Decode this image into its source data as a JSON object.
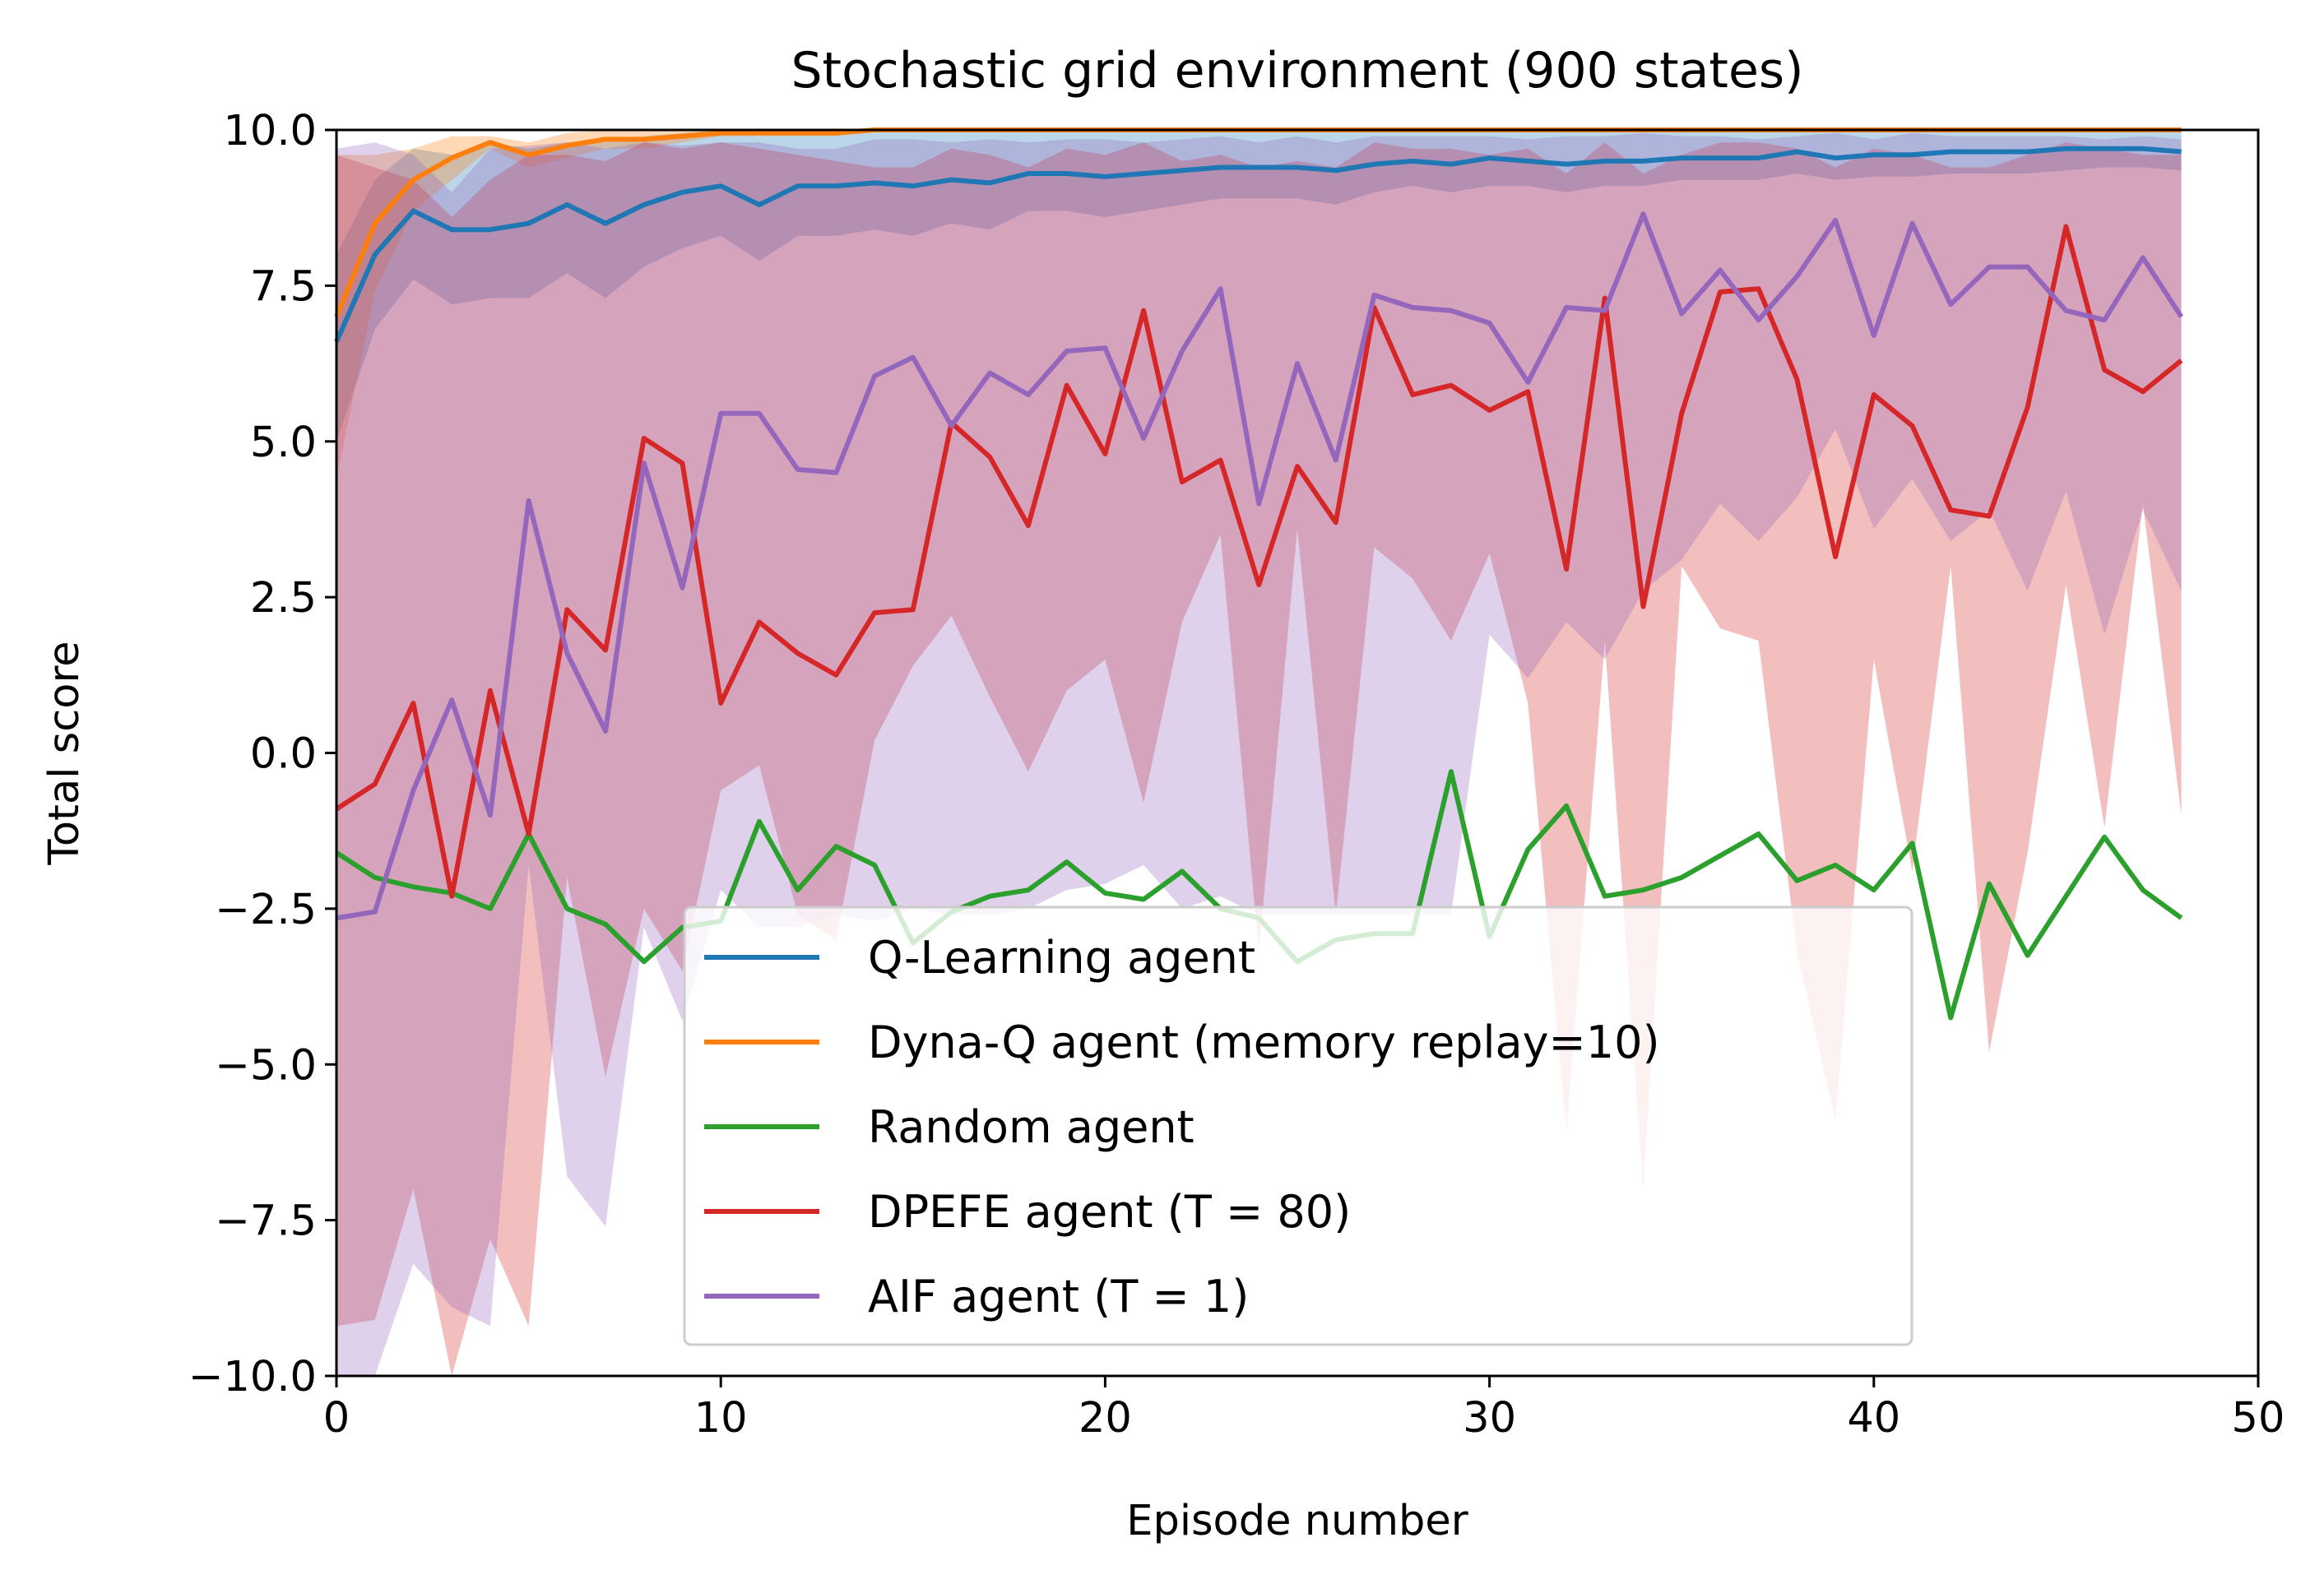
{
  "chart_data": {
    "type": "line",
    "title": "Stochastic grid environment (900 states)",
    "xlabel": "Episode number",
    "ylabel": "Total score",
    "xlim": [
      0,
      50
    ],
    "ylim": [
      -10,
      10
    ],
    "xticks": [
      0,
      10,
      20,
      30,
      40,
      50
    ],
    "xtick_labels": [
      "0",
      "10",
      "20",
      "30",
      "40",
      "50"
    ],
    "yticks": [
      -10,
      -7.5,
      -5,
      -2.5,
      0,
      2.5,
      5,
      7.5,
      10
    ],
    "ytick_labels": [
      "−10.0",
      "−7.5",
      "−5.0",
      "−2.5",
      "0.0",
      "2.5",
      "5.0",
      "7.5",
      "10.0"
    ],
    "grid": false,
    "legend_position": "lower-center",
    "x": [
      0,
      1,
      2,
      3,
      4,
      5,
      6,
      7,
      8,
      9,
      10,
      11,
      12,
      13,
      14,
      15,
      16,
      17,
      18,
      19,
      20,
      21,
      22,
      23,
      24,
      25,
      26,
      27,
      28,
      29,
      30,
      31,
      32,
      33,
      34,
      35,
      36,
      37,
      38,
      39,
      40,
      41,
      42,
      43,
      44,
      45,
      46,
      47,
      48
    ],
    "series": [
      {
        "name": "Q-Learning agent",
        "color": "#1f77b4",
        "band_alpha": 0.3,
        "values": [
          6.6,
          8.0,
          8.7,
          8.4,
          8.4,
          8.5,
          8.8,
          8.5,
          8.8,
          9.0,
          9.1,
          8.8,
          9.1,
          9.1,
          9.15,
          9.1,
          9.2,
          9.15,
          9.3,
          9.3,
          9.25,
          9.3,
          9.35,
          9.4,
          9.4,
          9.4,
          9.35,
          9.45,
          9.5,
          9.45,
          9.55,
          9.5,
          9.45,
          9.5,
          9.5,
          9.55,
          9.55,
          9.55,
          9.65,
          9.55,
          9.6,
          9.6,
          9.65,
          9.65,
          9.65,
          9.7,
          9.7,
          9.7,
          9.65
        ],
        "upper": [
          8.0,
          9.2,
          9.7,
          9.6,
          9.8,
          9.7,
          9.8,
          9.8,
          9.9,
          9.95,
          10.0,
          9.9,
          10,
          10,
          10,
          10,
          10,
          10,
          10,
          10,
          10,
          10,
          10,
          10,
          10,
          10,
          10,
          10,
          10,
          10,
          10,
          10,
          10,
          10,
          10,
          10,
          10,
          10,
          10,
          10,
          10,
          10,
          10,
          10,
          10,
          10,
          10,
          10,
          10
        ],
        "lower": [
          5.0,
          6.8,
          7.6,
          7.2,
          7.3,
          7.3,
          7.7,
          7.3,
          7.8,
          8.1,
          8.3,
          7.9,
          8.3,
          8.3,
          8.4,
          8.3,
          8.5,
          8.4,
          8.7,
          8.7,
          8.6,
          8.7,
          8.8,
          8.9,
          8.9,
          8.9,
          8.8,
          9.0,
          9.1,
          9.0,
          9.1,
          9.1,
          9.0,
          9.1,
          9.1,
          9.2,
          9.2,
          9.2,
          9.3,
          9.2,
          9.25,
          9.25,
          9.3,
          9.3,
          9.3,
          9.35,
          9.4,
          9.4,
          9.35
        ]
      },
      {
        "name": "Dyna-Q agent (memory replay=10)",
        "color": "#ff7f0e",
        "band_alpha": 0.3,
        "values": [
          7.0,
          8.5,
          9.2,
          9.55,
          9.8,
          9.6,
          9.75,
          9.85,
          9.85,
          9.9,
          9.95,
          9.95,
          9.95,
          9.95,
          10,
          10,
          10,
          10,
          10,
          10,
          10,
          10,
          10,
          10,
          10,
          10,
          10,
          10,
          10,
          10,
          10,
          10,
          10,
          10,
          10,
          10,
          10,
          10,
          10,
          10,
          10,
          10,
          10,
          10,
          10,
          10,
          10,
          10,
          10
        ],
        "upper": [
          9.6,
          9.6,
          9.7,
          9.9,
          9.9,
          9.8,
          9.95,
          10,
          10,
          10,
          10,
          10,
          10,
          10,
          10,
          10,
          10,
          10,
          10,
          10,
          10,
          10,
          10,
          10,
          10,
          10,
          10,
          10,
          10,
          10,
          10,
          10,
          10,
          10,
          10,
          10,
          10,
          10,
          10,
          10,
          10,
          10,
          10,
          10,
          10,
          10,
          10,
          10,
          10
        ],
        "lower": [
          4.4,
          7.4,
          8.7,
          9.2,
          9.7,
          9.4,
          9.55,
          9.7,
          9.7,
          9.8,
          9.9,
          9.9,
          9.9,
          9.9,
          10,
          10,
          10,
          10,
          10,
          10,
          10,
          10,
          10,
          10,
          10,
          10,
          10,
          10,
          10,
          10,
          10,
          10,
          10,
          10,
          10,
          10,
          10,
          10,
          10,
          10,
          10,
          10,
          10,
          10,
          10,
          10,
          10,
          10,
          10
        ]
      },
      {
        "name": "Random agent",
        "color": "#2ca02c",
        "band_alpha": 0.0,
        "values": [
          -1.6,
          -2.0,
          -2.15,
          -2.25,
          -2.5,
          -1.3,
          -2.5,
          -2.75,
          -3.35,
          -2.8,
          -2.7,
          -1.1,
          -2.2,
          -1.5,
          -1.8,
          -3.05,
          -2.55,
          -2.3,
          -2.2,
          -1.75,
          -2.25,
          -2.35,
          -1.9,
          -2.5,
          -2.65,
          -3.35,
          -3.0,
          -2.9,
          -2.9,
          -0.3,
          -2.95,
          -1.55,
          -0.85,
          -2.3,
          -2.2,
          -2.0,
          -1.65,
          -1.3,
          -2.05,
          -1.8,
          -2.2,
          -1.45,
          -4.25,
          -2.1,
          -3.25,
          -2.3,
          -1.35,
          -2.2,
          -2.65
        ]
      },
      {
        "name": "DPEFE agent (T = 80)",
        "color": "#d62728",
        "band_alpha": 0.3,
        "values": [
          -0.9,
          -0.5,
          0.8,
          -2.3,
          1.0,
          -1.3,
          2.3,
          1.65,
          5.05,
          4.65,
          0.8,
          2.1,
          1.6,
          1.25,
          2.25,
          2.3,
          5.3,
          4.75,
          3.65,
          5.9,
          4.8,
          7.1,
          4.35,
          4.7,
          2.7,
          4.6,
          3.7,
          7.15,
          5.75,
          5.9,
          5.5,
          5.8,
          2.95,
          7.3,
          2.35,
          5.45,
          7.4,
          7.45,
          6.0,
          3.15,
          5.75,
          5.25,
          3.9,
          3.8,
          5.55,
          8.45,
          6.15,
          5.8,
          6.3
        ],
        "upper": [
          9.6,
          9.4,
          9.2,
          8.6,
          9.2,
          9.6,
          9.6,
          9.5,
          9.8,
          9.7,
          9.8,
          9.7,
          9.6,
          9.5,
          9.4,
          9.4,
          9.7,
          9.6,
          9.4,
          9.7,
          9.6,
          9.8,
          9.5,
          9.6,
          9.4,
          9.5,
          9.4,
          9.8,
          9.7,
          9.7,
          9.6,
          9.7,
          9.3,
          9.8,
          9.3,
          9.6,
          9.8,
          9.8,
          9.7,
          9.4,
          9.7,
          9.6,
          9.4,
          9.4,
          9.6,
          9.8,
          9.7,
          9.6,
          9.6
        ],
        "lower": [
          -9.2,
          -9.1,
          -7.0,
          -10.0,
          -7.8,
          -9.2,
          -2.0,
          -5.2,
          -2.5,
          -3.5,
          -0.6,
          -0.2,
          -2.6,
          -3.0,
          0.2,
          1.4,
          2.2,
          0.9,
          -0.3,
          1.0,
          1.5,
          -0.8,
          2.1,
          3.5,
          -3.2,
          3.6,
          -2.6,
          3.3,
          2.8,
          1.8,
          3.2,
          0.8,
          -6.1,
          1.8,
          -7.0,
          3.0,
          2.0,
          1.8,
          -3.2,
          -5.9,
          1.5,
          -1.9,
          3.0,
          -4.8,
          -1.6,
          2.7,
          -1.2,
          4.0,
          -1.0
        ]
      },
      {
        "name": "AIF agent (T = 1)",
        "color": "#9467bd",
        "band_alpha": 0.3,
        "values": [
          -2.65,
          -2.55,
          -0.6,
          0.85,
          -1.0,
          4.05,
          1.6,
          0.35,
          4.65,
          2.65,
          5.45,
          5.45,
          4.55,
          4.5,
          6.05,
          6.35,
          5.25,
          6.1,
          5.75,
          6.45,
          6.5,
          5.05,
          6.45,
          7.45,
          4.0,
          6.25,
          4.7,
          7.35,
          7.15,
          7.1,
          6.9,
          5.95,
          7.15,
          7.1,
          8.65,
          7.05,
          7.75,
          6.95,
          7.65,
          8.55,
          6.7,
          8.5,
          7.2,
          7.8,
          7.8,
          7.1,
          6.95,
          7.95,
          7.0
        ],
        "upper": [
          9.7,
          9.8,
          9.6,
          9.0,
          9.7,
          9.75,
          9.8,
          9.7,
          9.8,
          9.75,
          9.8,
          9.8,
          9.7,
          9.7,
          9.85,
          9.85,
          9.8,
          9.85,
          9.8,
          9.85,
          9.85,
          9.8,
          9.85,
          9.9,
          9.8,
          9.9,
          9.8,
          9.9,
          9.9,
          9.9,
          9.9,
          9.85,
          9.9,
          9.9,
          9.95,
          9.9,
          9.9,
          9.85,
          9.9,
          9.95,
          9.85,
          9.95,
          9.9,
          9.9,
          9.9,
          9.9,
          9.85,
          9.9,
          9.85
        ],
        "lower": [
          -10.0,
          -10.0,
          -8.2,
          -8.9,
          -9.2,
          -1.8,
          -6.8,
          -7.6,
          -2.8,
          -4.3,
          -2.2,
          -2.8,
          -2.8,
          -2.6,
          -2.7,
          -2.5,
          -2.6,
          -2.6,
          -2.5,
          -2.2,
          -2.1,
          -1.8,
          -2.5,
          -2.3,
          -2.6,
          -2.6,
          -2.6,
          -2.6,
          -2.6,
          -2.6,
          1.9,
          1.2,
          2.1,
          1.5,
          2.6,
          3.1,
          4.0,
          3.4,
          4.1,
          5.2,
          3.6,
          4.4,
          3.4,
          3.9,
          2.6,
          4.2,
          1.9,
          3.9,
          2.6
        ]
      }
    ]
  }
}
